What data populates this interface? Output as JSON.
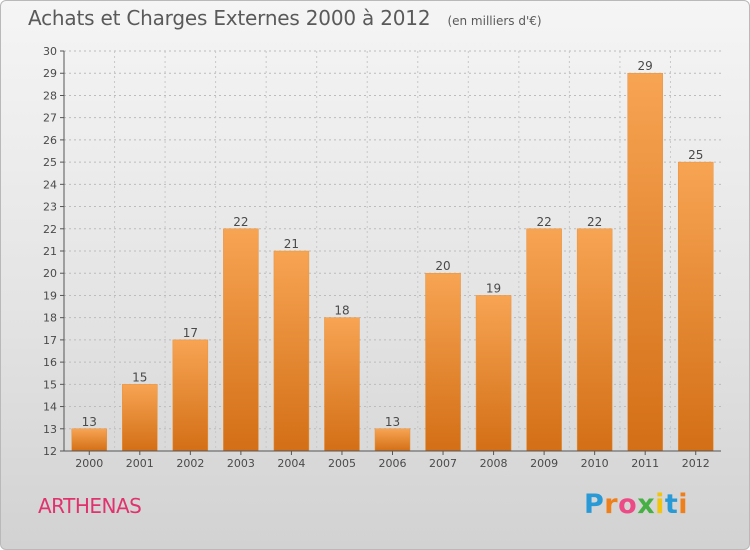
{
  "title": "Achats et Charges Externes 2000 à 2012",
  "subtitle": "(en milliers d'€)",
  "commune": "ARTHENAS",
  "logo_text": "Proxiti",
  "colors": {
    "bar_top": "#f7a453",
    "bar_bottom": "#d36f16",
    "title": "#5a5a5a",
    "commune": "#e0326e"
  },
  "chart_data": {
    "type": "bar",
    "title": "Achats et Charges Externes 2000 à 2012",
    "subtitle": "(en milliers d'€)",
    "categories": [
      "2000",
      "2001",
      "2002",
      "2003",
      "2004",
      "2005",
      "2006",
      "2007",
      "2008",
      "2009",
      "2010",
      "2011",
      "2012"
    ],
    "values": [
      13,
      15,
      17,
      22,
      21,
      18,
      13,
      20,
      19,
      22,
      22,
      29,
      25
    ],
    "ylim": [
      12,
      30
    ],
    "yticks": [
      12,
      13,
      14,
      15,
      16,
      17,
      18,
      19,
      20,
      21,
      22,
      23,
      24,
      25,
      26,
      27,
      28,
      29,
      30
    ],
    "grid": true,
    "xlabel": "",
    "ylabel": ""
  }
}
